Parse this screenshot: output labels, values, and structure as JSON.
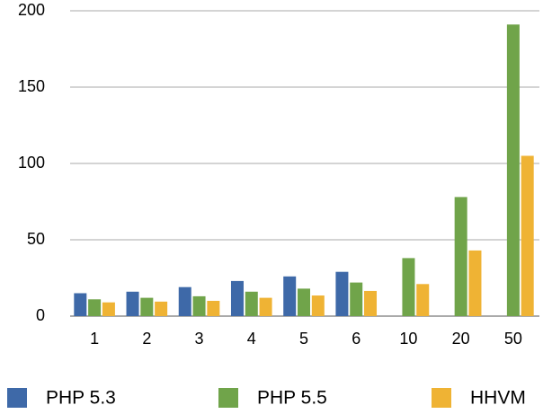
{
  "chart_data": {
    "type": "bar",
    "categories": [
      "1",
      "2",
      "3",
      "4",
      "5",
      "6",
      "10",
      "20",
      "50"
    ],
    "series": [
      {
        "name": "PHP 5.3",
        "color": "#3e69a8",
        "values": [
          15,
          16,
          19,
          23,
          26,
          29,
          null,
          null,
          null
        ]
      },
      {
        "name": "PHP 5.5",
        "color": "#70a44a",
        "values": [
          11,
          12,
          13,
          16,
          18,
          22,
          38,
          78,
          191
        ]
      },
      {
        "name": "HHVM",
        "color": "#efb334",
        "values": [
          9,
          9.5,
          10,
          12,
          13.5,
          16.5,
          21,
          43,
          105
        ]
      }
    ],
    "ylim": [
      0,
      200
    ],
    "yticks": [
      0,
      50,
      100,
      150,
      200
    ],
    "grid": true,
    "legend": "bottom"
  }
}
